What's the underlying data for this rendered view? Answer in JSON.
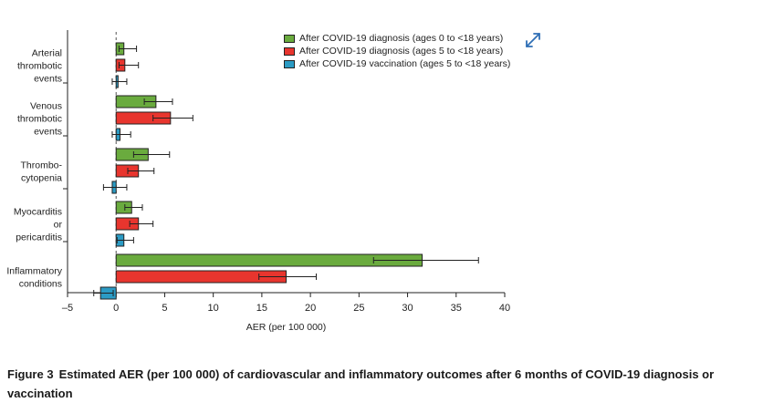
{
  "chart_data": {
    "type": "bar",
    "orientation": "horizontal",
    "title": "",
    "xlabel": "AER (per 100 000)",
    "ylabel": "",
    "xlim": [
      -5,
      40
    ],
    "xticks": [
      -5,
      0,
      5,
      10,
      15,
      20,
      25,
      30,
      35,
      40
    ],
    "xtick_labels": [
      "–5",
      "0",
      "5",
      "10",
      "15",
      "20",
      "25",
      "30",
      "35",
      "40"
    ],
    "grid": false,
    "reference_line": 0,
    "legend_position": "top-right",
    "categories": [
      [
        "Arterial",
        "thrombotic",
        "events"
      ],
      [
        "Venous",
        "thrombotic",
        "events"
      ],
      [
        "Thrombo-",
        "cytopenia"
      ],
      [
        "Myocarditis",
        "or",
        "pericarditis"
      ],
      [
        "Inflammatory",
        "conditions"
      ]
    ],
    "series": [
      {
        "name": "After COVID-19 diagnosis (ages 0 to <18 years)",
        "color": "#6aab3e",
        "values": [
          0.8,
          4.1,
          3.3,
          1.6,
          31.5
        ],
        "ci_low": [
          0.3,
          2.9,
          1.8,
          0.9,
          26.5
        ],
        "ci_high": [
          2.1,
          5.8,
          5.5,
          2.7,
          37.3
        ]
      },
      {
        "name": "After COVID-19 diagnosis (ages 5 to <18 years)",
        "color": "#e8352e",
        "values": [
          0.9,
          5.6,
          2.3,
          2.3,
          17.5
        ],
        "ci_low": [
          0.3,
          3.8,
          1.2,
          1.4,
          14.7
        ],
        "ci_high": [
          2.3,
          7.9,
          3.9,
          3.8,
          20.6
        ]
      },
      {
        "name": "After COVID-19 vaccination (ages 5 to <18 years)",
        "color": "#2b9bc4",
        "values": [
          0.2,
          0.4,
          -0.4,
          0.8,
          -1.6
        ],
        "ci_low": [
          -0.4,
          -0.4,
          -1.3,
          0.1,
          -2.3
        ],
        "ci_high": [
          1.1,
          1.5,
          1.1,
          1.8,
          -0.3
        ]
      }
    ]
  },
  "icons": {
    "expand": "expand-arrows-icon"
  },
  "caption": {
    "label": "Figure 3",
    "text": "Estimated AER (per 100 000) of cardiovascular and inflammatory outcomes after 6 months of COVID-19 diagnosis or vaccination"
  }
}
